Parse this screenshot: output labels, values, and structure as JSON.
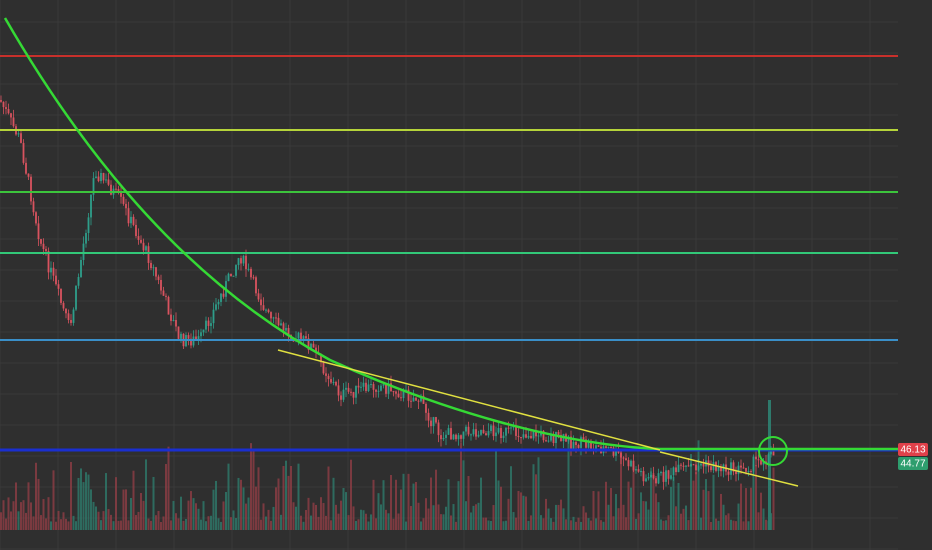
{
  "price_scale": {
    "current_price": "46.13",
    "second_price": "44.77"
  }
}
